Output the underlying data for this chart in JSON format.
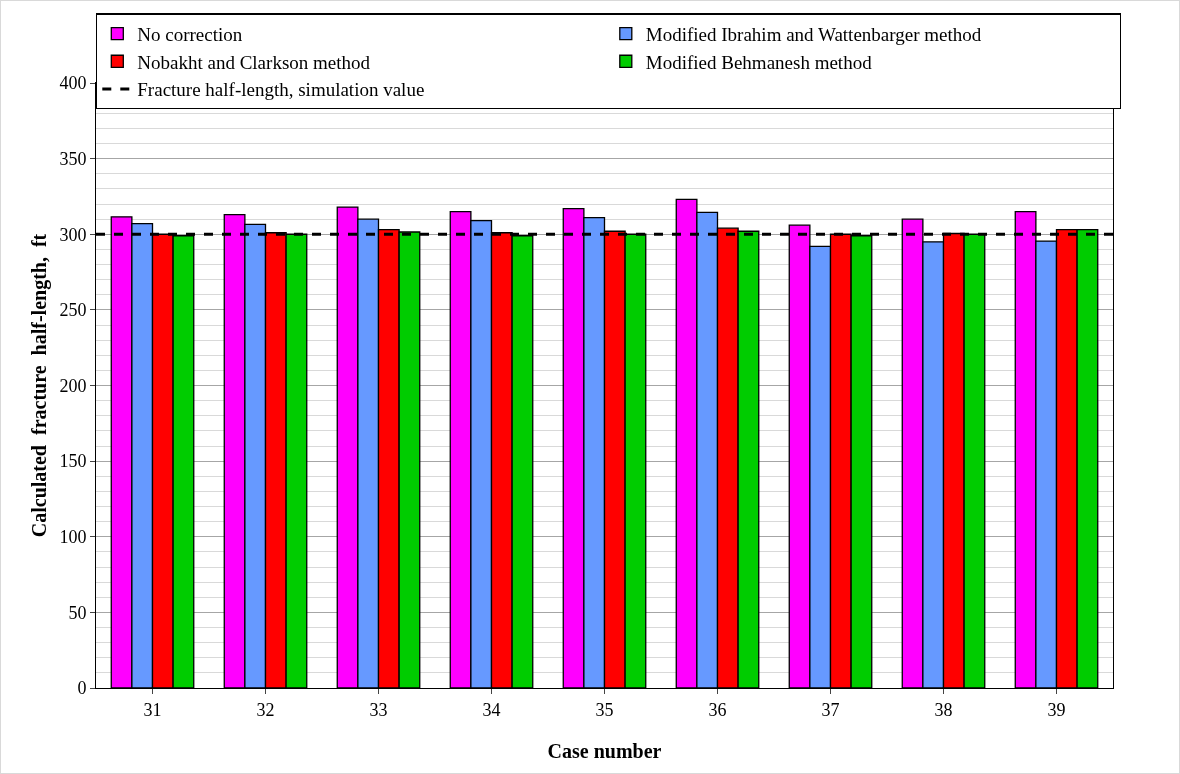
{
  "chart_data": {
    "type": "bar",
    "xlabel": "Case number",
    "ylabel": "Calculated  fracture  half-length,  ft",
    "categories": [
      "31",
      "32",
      "33",
      "34",
      "35",
      "36",
      "37",
      "38",
      "39"
    ],
    "series": [
      {
        "name": "No correction",
        "color": "#ff00ff",
        "values": [
          311.5,
          313,
          318,
          315,
          317,
          323,
          306,
          310,
          315
        ]
      },
      {
        "name": "Modified Ibrahim and Wattenbarger method",
        "color": "#6699ff",
        "values": [
          307,
          306.5,
          310,
          309,
          311,
          314.5,
          292,
          295,
          295.5
        ]
      },
      {
        "name": "Nobakht and Clarkson method",
        "color": "#ff0000",
        "values": [
          300,
          301,
          303,
          301,
          302,
          304,
          300,
          300.5,
          303
        ]
      },
      {
        "name": "Modified Behmanesh method",
        "color": "#00cc00",
        "values": [
          299,
          300,
          301.5,
          299,
          300,
          302,
          299,
          300,
          303
        ]
      }
    ],
    "ref_lines": [
      {
        "axis": "y",
        "value": 300,
        "label": "Fracture half-length, simulation value",
        "color": "#000000",
        "line_style": "dashed"
      }
    ],
    "ylim": [
      0,
      400
    ],
    "yticks": [
      0,
      50,
      100,
      150,
      200,
      250,
      300,
      350,
      400
    ],
    "grid": "y",
    "legend": "top"
  }
}
